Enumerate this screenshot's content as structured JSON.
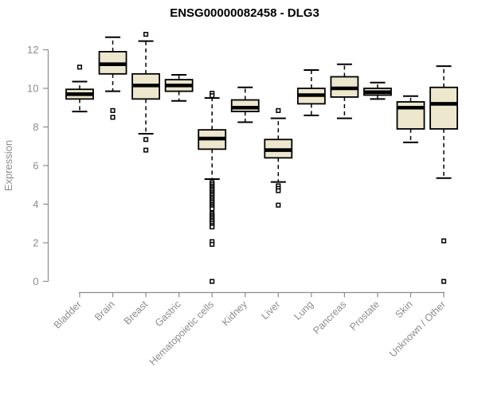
{
  "colors": {
    "background": "#ffffff",
    "box_fill": "#ece7cd",
    "box_stroke": "#000000",
    "median": "#000000",
    "axis": "#8c8c8c",
    "label": "#8c8c8c",
    "title": "#000000",
    "outlier_fill": "#ffffff"
  },
  "chart_data": {
    "type": "box",
    "title": "ENSG00000082458 - DLG3",
    "xlabel": "",
    "ylabel": "Expression",
    "ylim": [
      0,
      12.8
    ],
    "yticks": [
      0,
      2,
      4,
      6,
      8,
      10,
      12
    ],
    "grid": false,
    "legend": "none",
    "categories": [
      "Bladder",
      "Brain",
      "Breast",
      "Gastric",
      "Hematopoietic cells",
      "Kidney",
      "Liver",
      "Lung",
      "Pancreas",
      "Prostate",
      "Skin",
      "Unknown / Other"
    ],
    "series": [
      {
        "name": "Bladder",
        "whisker_low": 8.8,
        "q1": 9.45,
        "median": 9.7,
        "q3": 9.95,
        "whisker_high": 10.35,
        "outliers": [
          11.1
        ]
      },
      {
        "name": "Brain",
        "whisker_low": 9.85,
        "q1": 10.75,
        "median": 11.25,
        "q3": 11.9,
        "whisker_high": 12.65,
        "outliers": [
          8.85,
          8.5
        ]
      },
      {
        "name": "Breast",
        "whisker_low": 7.65,
        "q1": 9.45,
        "median": 10.15,
        "q3": 10.75,
        "whisker_high": 12.45,
        "outliers": [
          12.8,
          7.35,
          6.8
        ]
      },
      {
        "name": "Gastric",
        "whisker_low": 9.35,
        "q1": 9.85,
        "median": 10.15,
        "q3": 10.45,
        "whisker_high": 10.7,
        "outliers": []
      },
      {
        "name": "Hematopoietic cells",
        "whisker_low": 5.3,
        "q1": 6.85,
        "median": 7.4,
        "q3": 7.85,
        "whisker_high": 9.5,
        "outliers": [
          9.75,
          9.62,
          5.12,
          5.02,
          4.93,
          4.85,
          4.77,
          4.69,
          4.6,
          4.52,
          4.44,
          4.35,
          4.27,
          4.18,
          4.1,
          4.0,
          3.92,
          3.84,
          3.76,
          3.52,
          3.43,
          3.35,
          3.27,
          3.18,
          3.1,
          3.0,
          2.9,
          2.82,
          2.06,
          1.92,
          0.0
        ]
      },
      {
        "name": "Kidney",
        "whisker_low": 8.25,
        "q1": 8.8,
        "median": 9.0,
        "q3": 9.4,
        "whisker_high": 10.05,
        "outliers": []
      },
      {
        "name": "Liver",
        "whisker_low": 5.15,
        "q1": 6.4,
        "median": 6.8,
        "q3": 7.35,
        "whisker_high": 8.45,
        "outliers": [
          8.85,
          4.95,
          4.82,
          4.7,
          3.95
        ]
      },
      {
        "name": "Lung",
        "whisker_low": 8.6,
        "q1": 9.2,
        "median": 9.65,
        "q3": 10.0,
        "whisker_high": 10.95,
        "outliers": []
      },
      {
        "name": "Pancreas",
        "whisker_low": 8.45,
        "q1": 9.55,
        "median": 10.0,
        "q3": 10.6,
        "whisker_high": 11.25,
        "outliers": []
      },
      {
        "name": "Prostate",
        "whisker_low": 9.45,
        "q1": 9.65,
        "median": 9.8,
        "q3": 10.0,
        "whisker_high": 10.3,
        "outliers": []
      },
      {
        "name": "Skin",
        "whisker_low": 7.2,
        "q1": 7.9,
        "median": 9.0,
        "q3": 9.3,
        "whisker_high": 9.6,
        "outliers": []
      },
      {
        "name": "Unknown / Other",
        "whisker_low": 5.35,
        "q1": 7.9,
        "median": 9.2,
        "q3": 10.05,
        "whisker_high": 11.15,
        "outliers": [
          2.1,
          0.0
        ]
      }
    ]
  }
}
